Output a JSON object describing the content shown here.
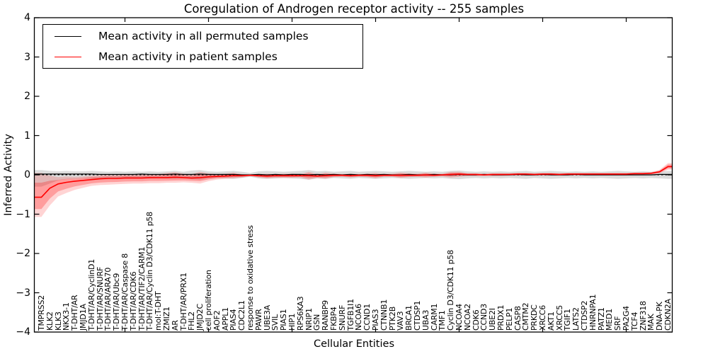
{
  "chart_data": {
    "type": "line",
    "title": "Coregulation of Androgen receptor activity -- 255 samples",
    "xlabel": "Cellular Entities",
    "ylabel": "Inferred Activity",
    "ylim": [
      -4,
      4
    ],
    "grid": false,
    "legend_position": "upper left",
    "zero_line": "dashed",
    "ytick_labels": [
      "4",
      "3",
      "2",
      "1",
      "0",
      "−1",
      "−2",
      "−3",
      "−4"
    ],
    "ytick_values": [
      4,
      3,
      2,
      1,
      0,
      -1,
      -2,
      -3,
      -4
    ],
    "categories": [
      "TMPRSS2",
      "KLK2",
      "KLK3",
      "NKX3-1",
      "T-DHT/AR",
      "JMJD1A",
      "T-DHT/AR/CyclinD1",
      "T-DHT/AR/SNURF",
      "T-DHT/AR/ARA70",
      "T-DHT/AR/Ubc9",
      "T-DHT/AR/Caspase 8",
      "T-DHT/AR/CDK6",
      "T-DHT/AR/TIF2/CARM1",
      "T-DHT/AR/Cyclin D3/CDK11 p58",
      "mol:T-DHT",
      "ZMIZ1",
      "AR",
      "T-DHT/AR/PRX1",
      "FHL2",
      "JMJD2C",
      "cell proliferation",
      "AOF2",
      "APPL1",
      "PIAS4",
      "CDC2L1",
      "response to oxidative stress",
      "PAWR",
      "UBE3A",
      "SVIL",
      "PIAS1",
      "HIP1",
      "RPS6KA3",
      "NRIP1",
      "GSN",
      "RANBP9",
      "FKBP4",
      "SNURF",
      "TGFB1I1",
      "NCOA6",
      "CCND1",
      "PIAS3",
      "CTNNB1",
      "PTK2B",
      "VAV3",
      "BRCA1",
      "CTDSP1",
      "UBA3",
      "CARM1",
      "TMF1",
      "Cyclin D3/CDK11 p58",
      "NCOA4",
      "NCOA2",
      "CDK6",
      "CCND3",
      "UBE2I",
      "PRDX1",
      "PELP1",
      "CASP8",
      "CMTM2",
      "PRKDC",
      "XRCC6",
      "AKT1",
      "XRCC5",
      "TGIF1",
      "LATS2",
      "CTDSP2",
      "HNRNPA1",
      "PATZ1",
      "MED1",
      "SRF",
      "PA2G4",
      "TCF4",
      "ZNF318",
      "MAK",
      "DNA-PK",
      "CDKN2A"
    ],
    "series": [
      {
        "name": "Mean activity in all permuted samples",
        "color": "#000000",
        "values": [
          0.02,
          0.02,
          0.02,
          0.02,
          0.02,
          0.02,
          0.02,
          0.01,
          0.01,
          0.01,
          0.01,
          0.01,
          0.02,
          0.01,
          0.01,
          0.01,
          0.02,
          0.01,
          0.01,
          0.02,
          0.01,
          0.01,
          0.01,
          0.01,
          0.0,
          0.0,
          0.01,
          0.0,
          0.01,
          0.0,
          0.01,
          0.01,
          0.0,
          0.01,
          0.0,
          0.01,
          0.0,
          0.01,
          0.0,
          0.01,
          0.0,
          0.01,
          0.0,
          0.0,
          0.01,
          0.0,
          0.0,
          0.01,
          0.0,
          0.0,
          0.01,
          0.0,
          0.0,
          0.01,
          0.0,
          0.0,
          0.0,
          0.01,
          0.0,
          0.0,
          0.01,
          0.0,
          0.0,
          0.0,
          0.01,
          0.0,
          0.0,
          0.0,
          0.0,
          0.0,
          0.0,
          0.0,
          0.0,
          0.0,
          0.01,
          0.01
        ],
        "band_upper": [
          0.12,
          0.1,
          0.09,
          0.1,
          0.09,
          0.09,
          0.1,
          0.09,
          0.08,
          0.09,
          0.08,
          0.09,
          0.08,
          0.09,
          0.08,
          0.09,
          0.1,
          0.08,
          0.11,
          0.12,
          0.09,
          0.08,
          0.09,
          0.1,
          0.08,
          0.05,
          0.09,
          0.1,
          0.09,
          0.08,
          0.09,
          0.1,
          0.12,
          0.09,
          0.1,
          0.08,
          0.09,
          0.1,
          0.08,
          0.09,
          0.1,
          0.09,
          0.08,
          0.09,
          0.1,
          0.09,
          0.08,
          0.09,
          0.08,
          0.1,
          0.11,
          0.09,
          0.08,
          0.09,
          0.08,
          0.09,
          0.08,
          0.09,
          0.1,
          0.08,
          0.09,
          0.1,
          0.09,
          0.08,
          0.09,
          0.08,
          0.09,
          0.08,
          0.09,
          0.1,
          0.09,
          0.08,
          0.09,
          0.08,
          0.09,
          0.1
        ],
        "band_lower": [
          -0.3,
          -0.22,
          -0.14,
          -0.11,
          -0.1,
          -0.09,
          -0.1,
          -0.09,
          -0.08,
          -0.09,
          -0.08,
          -0.09,
          -0.08,
          -0.09,
          -0.08,
          -0.09,
          -0.1,
          -0.08,
          -0.11,
          -0.12,
          -0.09,
          -0.08,
          -0.09,
          -0.1,
          -0.08,
          -0.05,
          -0.09,
          -0.1,
          -0.09,
          -0.08,
          -0.09,
          -0.1,
          -0.12,
          -0.09,
          -0.1,
          -0.08,
          -0.09,
          -0.1,
          -0.08,
          -0.09,
          -0.1,
          -0.09,
          -0.08,
          -0.09,
          -0.1,
          -0.09,
          -0.08,
          -0.09,
          -0.08,
          -0.1,
          -0.11,
          -0.09,
          -0.08,
          -0.09,
          -0.08,
          -0.09,
          -0.08,
          -0.09,
          -0.1,
          -0.08,
          -0.09,
          -0.1,
          -0.09,
          -0.08,
          -0.09,
          -0.08,
          -0.09,
          -0.08,
          -0.09,
          -0.1,
          -0.09,
          -0.08,
          -0.09,
          -0.08,
          -0.09,
          -0.1
        ],
        "band_color": "rgba(130,130,130,0.28)"
      },
      {
        "name": "Mean activity in patient samples",
        "color": "#ff0000",
        "values": [
          -0.57,
          -0.34,
          -0.23,
          -0.19,
          -0.16,
          -0.14,
          -0.12,
          -0.1,
          -0.09,
          -0.09,
          -0.08,
          -0.08,
          -0.08,
          -0.07,
          -0.07,
          -0.07,
          -0.06,
          -0.07,
          -0.08,
          -0.07,
          -0.05,
          -0.04,
          -0.03,
          -0.02,
          -0.02,
          -0.01,
          -0.02,
          -0.03,
          -0.02,
          -0.02,
          -0.02,
          -0.02,
          -0.02,
          -0.03,
          -0.02,
          -0.01,
          -0.01,
          -0.02,
          -0.01,
          -0.01,
          -0.02,
          -0.01,
          -0.01,
          -0.01,
          -0.01,
          -0.01,
          0.0,
          -0.01,
          0.0,
          0.01,
          0.02,
          0.01,
          0.01,
          0.0,
          0.01,
          0.01,
          0.01,
          0.02,
          0.02,
          0.01,
          0.02,
          0.02,
          0.01,
          0.02,
          0.02,
          0.02,
          0.02,
          0.02,
          0.02,
          0.02,
          0.02,
          0.03,
          0.03,
          0.04,
          0.08,
          0.21
        ],
        "band_upper": [
          0.05,
          -0.02,
          -0.06,
          -0.04,
          -0.05,
          -0.04,
          -0.02,
          -0.01,
          0.0,
          0.0,
          0.01,
          0.01,
          0.01,
          0.02,
          0.02,
          0.05,
          0.07,
          0.03,
          0.02,
          0.08,
          0.04,
          0.02,
          0.03,
          0.06,
          0.02,
          0.0,
          0.02,
          0.03,
          0.02,
          0.03,
          0.03,
          0.02,
          0.08,
          0.02,
          0.06,
          0.03,
          0.02,
          0.03,
          0.02,
          0.03,
          0.05,
          0.02,
          0.03,
          0.06,
          0.04,
          0.03,
          0.06,
          0.03,
          0.03,
          0.08,
          0.08,
          0.04,
          0.04,
          0.03,
          0.04,
          0.04,
          0.04,
          0.05,
          0.05,
          0.04,
          0.05,
          0.05,
          0.04,
          0.05,
          0.05,
          0.05,
          0.05,
          0.05,
          0.05,
          0.05,
          0.05,
          0.06,
          0.06,
          0.07,
          0.13,
          0.3
        ],
        "band_lower": [
          -1.07,
          -0.78,
          -0.55,
          -0.46,
          -0.38,
          -0.33,
          -0.28,
          -0.26,
          -0.25,
          -0.24,
          -0.23,
          -0.22,
          -0.22,
          -0.21,
          -0.21,
          -0.2,
          -0.2,
          -0.19,
          -0.2,
          -0.22,
          -0.16,
          -0.12,
          -0.1,
          -0.09,
          -0.07,
          -0.03,
          -0.07,
          -0.09,
          -0.08,
          -0.08,
          -0.08,
          -0.07,
          -0.12,
          -0.08,
          -0.1,
          -0.06,
          -0.05,
          -0.07,
          -0.05,
          -0.06,
          -0.09,
          -0.05,
          -0.05,
          -0.08,
          -0.06,
          -0.05,
          -0.07,
          -0.05,
          -0.04,
          -0.07,
          -0.05,
          -0.03,
          -0.03,
          -0.03,
          -0.03,
          -0.03,
          -0.02,
          -0.02,
          -0.02,
          -0.02,
          -0.02,
          -0.02,
          -0.02,
          -0.02,
          -0.01,
          -0.01,
          -0.01,
          -0.01,
          -0.01,
          -0.01,
          -0.01,
          0.0,
          0.0,
          0.01,
          0.04,
          0.13
        ],
        "band_color": "rgba(255,0,0,0.17)",
        "band_inner_color": "rgba(255,0,0,0.26)"
      }
    ],
    "legend": [
      {
        "label": "Mean activity in all permuted samples",
        "color": "#000000"
      },
      {
        "label": "Mean activity in patient samples",
        "color": "#ff0000"
      }
    ]
  }
}
